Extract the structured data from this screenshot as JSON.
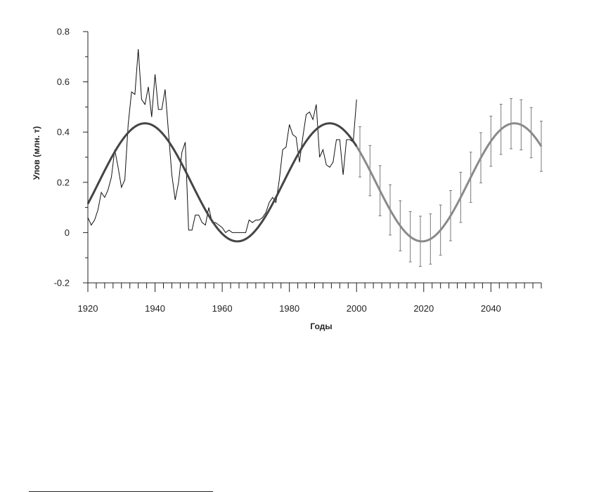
{
  "chart_data": {
    "type": "line",
    "title": "",
    "xlabel": "Годы",
    "ylabel": "Улов (млн. т)",
    "xlim": [
      1920,
      2055
    ],
    "ylim": [
      -0.2,
      0.8
    ],
    "x_ticks": [
      1920,
      1940,
      1960,
      1980,
      2000,
      2020,
      2040
    ],
    "x_tick_labels": [
      "1920",
      "1940",
      "1960",
      "1980",
      "2000",
      "2020",
      "2040"
    ],
    "y_ticks": [
      -0.2,
      0,
      0.2,
      0.4,
      0.6,
      0.8
    ],
    "y_tick_labels": [
      "-0.2",
      "0",
      "0.2",
      "0.4",
      "0.6",
      "0.8"
    ],
    "grid": false,
    "legend": "none",
    "colors": {
      "observed": "#111111",
      "model_fit": "#454545",
      "forecast": "#8a8a8a",
      "error_bars": "#7a7a7a",
      "axes": "#222222"
    },
    "series": [
      {
        "kind": "observed",
        "x": [
          1920,
          1921,
          1922,
          1923,
          1924,
          1925,
          1926,
          1927,
          1928,
          1929,
          1930,
          1931,
          1932,
          1933,
          1934,
          1935,
          1936,
          1937,
          1938,
          1939,
          1940,
          1941,
          1942,
          1943,
          1944,
          1945,
          1946,
          1947,
          1948,
          1949,
          1950,
          1951,
          1952,
          1953,
          1954,
          1955,
          1956,
          1957,
          1958,
          1959,
          1960,
          1961,
          1962,
          1963,
          1964,
          1965,
          1966,
          1967,
          1968,
          1969,
          1970,
          1971,
          1972,
          1973,
          1974,
          1975,
          1976,
          1977,
          1978,
          1979,
          1980,
          1981,
          1982,
          1983,
          1984,
          1985,
          1986,
          1987,
          1988,
          1989,
          1990,
          1991,
          1992,
          1993,
          1994,
          1995,
          1996,
          1997,
          1998,
          1999,
          2000
        ],
        "y": [
          0.06,
          0.03,
          0.05,
          0.09,
          0.16,
          0.14,
          0.17,
          0.22,
          0.33,
          0.26,
          0.18,
          0.21,
          0.43,
          0.56,
          0.55,
          0.73,
          0.53,
          0.51,
          0.58,
          0.46,
          0.63,
          0.49,
          0.49,
          0.57,
          0.4,
          0.23,
          0.13,
          0.2,
          0.32,
          0.36,
          0.01,
          0.01,
          0.07,
          0.07,
          0.04,
          0.03,
          0.1,
          0.04,
          0.04,
          0.03,
          0.02,
          0.0,
          0.01,
          0.0,
          0.0,
          0.0,
          0.0,
          0.0,
          0.05,
          0.04,
          0.05,
          0.05,
          0.06,
          0.08,
          0.12,
          0.14,
          0.12,
          0.21,
          0.33,
          0.34,
          0.43,
          0.39,
          0.38,
          0.28,
          0.38,
          0.47,
          0.48,
          0.45,
          0.51,
          0.3,
          0.33,
          0.27,
          0.26,
          0.28,
          0.37,
          0.37,
          0.23,
          0.37,
          0.37,
          0.36,
          0.53
        ]
      },
      {
        "kind": "model_fit",
        "x_start": 1920,
        "x_end": 2000,
        "mean": 0.2,
        "amplitude": 0.235,
        "period_years": 55,
        "peak_year": 1937
      },
      {
        "kind": "forecast",
        "x_start": 2000,
        "x_end": 2055,
        "mean": 0.2,
        "amplitude": 0.235,
        "period_years": 55,
        "peak_year": 1937,
        "error_bar_years": [
          2001,
          2004,
          2007,
          2010,
          2013,
          2016,
          2019,
          2022,
          2025,
          2028,
          2031,
          2034,
          2037,
          2040,
          2043,
          2046,
          2049,
          2052,
          2055
        ],
        "error_half_width": 0.1
      }
    ]
  }
}
